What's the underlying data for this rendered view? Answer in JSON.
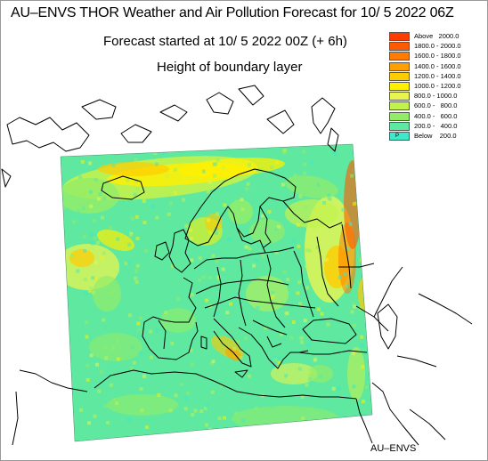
{
  "header": {
    "title": "AU–ENVS THOR Weather and Air Pollution Forecast for 10/ 5 2022  06Z",
    "started": "Forecast started at 10/ 5 2022  00Z (+ 6h)",
    "parameter": "Height of boundary layer"
  },
  "legend": {
    "items": [
      {
        "label": "Above   2000.0",
        "color": "#ff3c00"
      },
      {
        "label": "1800.0 - 2000.0",
        "color": "#ff5a00"
      },
      {
        "label": "1600.0 - 1800.0",
        "color": "#ff7c00"
      },
      {
        "label": "1400.0 - 1600.0",
        "color": "#ffa000"
      },
      {
        "label": "1200.0 - 1400.0",
        "color": "#ffcc00"
      },
      {
        "label": "1000.0 - 1200.0",
        "color": "#fff000"
      },
      {
        "label": "800.0 - 1000.0",
        "color": "#e8f550"
      },
      {
        "label": "600.0 -   800.0",
        "color": "#c2f24e"
      },
      {
        "label": "400.0 -   600.0",
        "color": "#93ec68"
      },
      {
        "label": "200.0 -   400.0",
        "color": "#5ee8a0"
      },
      {
        "label": "Below    200.0",
        "color": "#3ee8c8",
        "mark": "P"
      }
    ]
  },
  "map": {
    "base_color": "#5ee8a0",
    "outline_color": "#000000"
  },
  "footer": {
    "credit": "AU–ENVS"
  }
}
